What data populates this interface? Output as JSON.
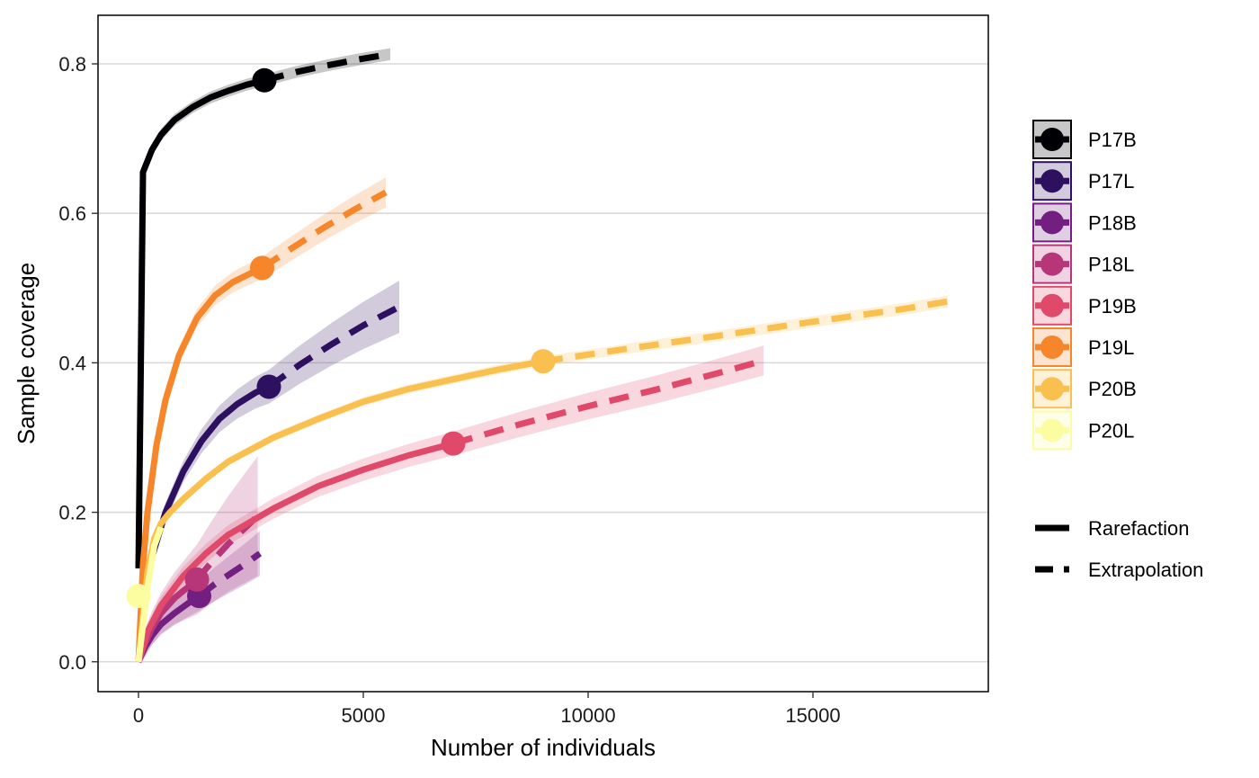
{
  "chart_data": {
    "type": "line",
    "xlabel": "Number of individuals",
    "ylabel": "Sample coverage",
    "xlim": [
      -900,
      18900
    ],
    "ylim": [
      -0.04,
      0.865
    ],
    "xticks": [
      0,
      5000,
      10000,
      15000
    ],
    "xtick_labels": [
      "0",
      "5000",
      "10000",
      "15000"
    ],
    "yticks": [
      0.0,
      0.2,
      0.4,
      0.6,
      0.8
    ],
    "ytick_labels": [
      "0.0",
      "0.2",
      "0.4",
      "0.6",
      "0.8"
    ],
    "grid": "horizontal-major",
    "legend_position": "right",
    "line_types": [
      {
        "name": "Rarefaction",
        "style": "solid"
      },
      {
        "name": "Extrapolation",
        "style": "dashed"
      }
    ],
    "series": [
      {
        "name": "P17B",
        "color": "#000004",
        "observed": {
          "x": 2800,
          "y": 0.778
        },
        "rarefaction": {
          "x": [
            0,
            100,
            300,
            500,
            800,
            1200,
            1600,
            2000,
            2400,
            2800
          ],
          "y": [
            0.125,
            0.655,
            0.685,
            0.705,
            0.725,
            0.742,
            0.755,
            0.764,
            0.772,
            0.778
          ]
        },
        "extrapolation": {
          "x": [
            2800,
            3500,
            4200,
            4900,
            5600
          ],
          "y": [
            0.778,
            0.789,
            0.798,
            0.806,
            0.813
          ]
        },
        "ci_halfwidth": [
          0.008,
          0.008
        ]
      },
      {
        "name": "P17L",
        "color": "#2D1160",
        "observed": {
          "x": 2900,
          "y": 0.368
        },
        "rarefaction": {
          "x": [
            0,
            150,
            300,
            600,
            1000,
            1400,
            1800,
            2200,
            2600,
            2900
          ],
          "y": [
            0.0,
            0.09,
            0.14,
            0.2,
            0.255,
            0.295,
            0.325,
            0.345,
            0.36,
            0.368
          ]
        },
        "extrapolation": {
          "x": [
            2900,
            3600,
            4300,
            5000,
            5800
          ],
          "y": [
            0.368,
            0.398,
            0.425,
            0.45,
            0.475
          ]
        },
        "ci_halfwidth": [
          0.01,
          0.035
        ]
      },
      {
        "name": "P18B",
        "color": "#721F81",
        "observed": {
          "x": 1350,
          "y": 0.088
        },
        "rarefaction": {
          "x": [
            0,
            150,
            300,
            500,
            800,
            1100,
            1350
          ],
          "y": [
            0.0,
            0.02,
            0.035,
            0.05,
            0.065,
            0.078,
            0.088
          ]
        },
        "extrapolation": {
          "x": [
            1350,
            1700,
            2050,
            2400,
            2700
          ],
          "y": [
            0.088,
            0.104,
            0.118,
            0.132,
            0.145
          ]
        },
        "ci_halfwidth": [
          0.01,
          0.03
        ]
      },
      {
        "name": "P18L",
        "color": "#B63679",
        "observed": {
          "x": 1300,
          "y": 0.11
        },
        "rarefaction": {
          "x": [
            0,
            150,
            300,
            500,
            800,
            1100,
            1300
          ],
          "y": [
            0.0,
            0.025,
            0.045,
            0.065,
            0.085,
            0.1,
            0.11
          ]
        },
        "extrapolation": {
          "x": [
            1300,
            1650,
            2000,
            2350,
            2650
          ],
          "y": [
            0.11,
            0.135,
            0.158,
            0.178,
            0.195
          ]
        },
        "ci_halfwidth": [
          0.015,
          0.08
        ]
      },
      {
        "name": "P19B",
        "color": "#E0496A",
        "observed": {
          "x": 7000,
          "y": 0.292
        },
        "rarefaction": {
          "x": [
            0,
            200,
            500,
            1000,
            1500,
            2000,
            3000,
            4000,
            5000,
            6000,
            7000
          ],
          "y": [
            0.0,
            0.04,
            0.075,
            0.115,
            0.145,
            0.17,
            0.205,
            0.235,
            0.257,
            0.276,
            0.292
          ]
        },
        "extrapolation": {
          "x": [
            7000,
            8500,
            10000,
            11500,
            13000,
            13900
          ],
          "y": [
            0.292,
            0.318,
            0.342,
            0.364,
            0.388,
            0.403
          ]
        },
        "ci_halfwidth": [
          0.012,
          0.02
        ]
      },
      {
        "name": "P19L",
        "color": "#F7862A",
        "observed": {
          "x": 2750,
          "y": 0.527
        },
        "rarefaction": {
          "x": [
            0,
            100,
            200,
            400,
            600,
            900,
            1300,
            1700,
            2100,
            2500,
            2750
          ],
          "y": [
            0.0,
            0.13,
            0.2,
            0.29,
            0.35,
            0.41,
            0.46,
            0.49,
            0.508,
            0.52,
            0.527
          ]
        },
        "extrapolation": {
          "x": [
            2750,
            3400,
            4100,
            4800,
            5500
          ],
          "y": [
            0.527,
            0.553,
            0.58,
            0.605,
            0.628
          ]
        },
        "ci_halfwidth": [
          0.01,
          0.02
        ]
      },
      {
        "name": "P20B",
        "color": "#FAC04F",
        "observed": {
          "x": 9000,
          "y": 0.402
        },
        "rarefaction": {
          "x": [
            0,
            100,
            200,
            350,
            500,
            700,
            1000,
            1500,
            2000,
            3000,
            4000,
            5000,
            6000,
            7000,
            8000,
            9000
          ],
          "y": [
            0.0,
            0.06,
            0.12,
            0.165,
            0.185,
            0.2,
            0.218,
            0.245,
            0.268,
            0.3,
            0.325,
            0.348,
            0.365,
            0.378,
            0.391,
            0.402
          ]
        },
        "extrapolation": {
          "x": [
            9000,
            11000,
            13000,
            15000,
            17000,
            18000
          ],
          "y": [
            0.402,
            0.42,
            0.437,
            0.455,
            0.472,
            0.482
          ]
        },
        "ci_halfwidth": [
          0.005,
          0.008
        ]
      },
      {
        "name": "P20L",
        "color": "#FCFDA0",
        "observed": {
          "x": 0,
          "y": 0.088
        },
        "rarefaction": {
          "x": [
            0,
            100,
            200,
            350,
            500
          ],
          "y": [
            0.0,
            0.05,
            0.1,
            0.155,
            0.18
          ]
        },
        "extrapolation": {
          "x": [],
          "y": []
        },
        "ci_halfwidth": [
          0.004,
          0.004
        ]
      }
    ]
  }
}
